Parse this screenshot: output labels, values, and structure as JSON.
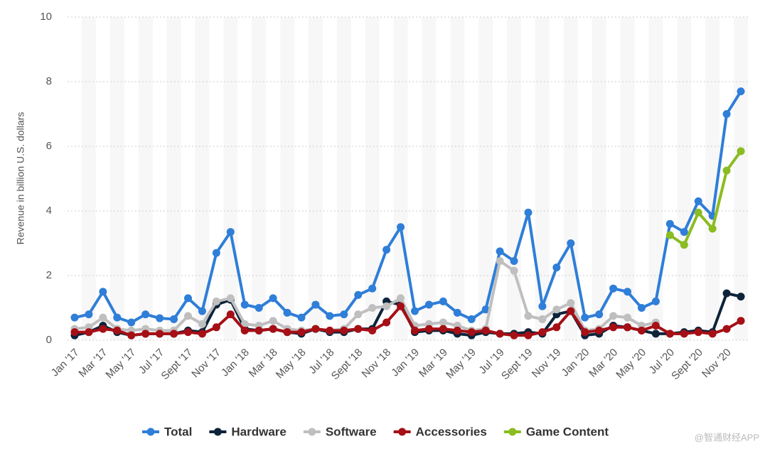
{
  "chart_data": {
    "type": "line",
    "y_label": "Revenue in billion U.S. dollars",
    "categories": [
      "Jan '17",
      null,
      "Mar '17",
      null,
      "May '17",
      null,
      "Jul '17",
      null,
      "Sept '17",
      null,
      "Nov '17",
      null,
      "Jan '18",
      null,
      "Mar '18",
      null,
      "May '18",
      null,
      "Jul '18",
      null,
      "Sept '18",
      null,
      "Nov '18",
      null,
      "Jan '19",
      null,
      "Mar '19",
      null,
      "May '19",
      null,
      "Jul '19",
      null,
      "Sept '19",
      null,
      "Nov '19",
      null,
      "Jan '20",
      null,
      "Mar '20",
      null,
      "May '20",
      null,
      "Jul '20",
      null,
      "Sept '20",
      null,
      "Nov '20",
      null
    ],
    "series": [
      {
        "name": "Total",
        "color": "#2f7ed8",
        "values": [
          0.7,
          0.8,
          1.5,
          0.7,
          0.55,
          0.8,
          0.68,
          0.65,
          1.3,
          0.9,
          2.7,
          3.35,
          1.1,
          1.0,
          1.3,
          0.85,
          0.7,
          1.1,
          0.75,
          0.8,
          1.4,
          1.6,
          2.8,
          3.5,
          0.9,
          1.1,
          1.2,
          0.85,
          0.65,
          0.95,
          2.75,
          2.45,
          3.95,
          1.05,
          2.25,
          3.0,
          0.7,
          0.8,
          1.6,
          1.5,
          1.0,
          1.2,
          3.6,
          3.35,
          4.3,
          3.85,
          7.0,
          7.7
        ]
      },
      {
        "name": "Hardware",
        "color": "#0d233a",
        "values": [
          0.15,
          0.25,
          0.45,
          0.25,
          0.15,
          0.2,
          0.2,
          0.2,
          0.3,
          0.25,
          1.1,
          1.25,
          0.35,
          0.3,
          0.35,
          0.25,
          0.2,
          0.35,
          0.25,
          0.25,
          0.35,
          0.35,
          1.2,
          1.1,
          0.25,
          0.3,
          0.3,
          0.2,
          0.15,
          0.25,
          0.2,
          0.2,
          0.25,
          0.2,
          0.8,
          0.9,
          0.15,
          0.2,
          0.45,
          0.4,
          0.3,
          0.2,
          0.2,
          0.25,
          0.3,
          0.25,
          1.45,
          1.35
        ]
      },
      {
        "name": "Software",
        "color": "#bfbfbf",
        "values": [
          0.35,
          0.4,
          0.7,
          0.35,
          0.3,
          0.35,
          0.3,
          0.3,
          0.75,
          0.5,
          1.2,
          1.3,
          0.5,
          0.45,
          0.6,
          0.35,
          0.3,
          0.35,
          0.3,
          0.35,
          0.8,
          1.0,
          1.05,
          1.3,
          0.45,
          0.5,
          0.55,
          0.45,
          0.3,
          0.35,
          2.45,
          2.15,
          0.75,
          0.65,
          0.95,
          1.15,
          0.3,
          0.35,
          0.75,
          0.7,
          0.45,
          0.55,
          null,
          null,
          null,
          null,
          null,
          null
        ]
      },
      {
        "name": "Accessories",
        "color": "#a50f15",
        "values": [
          0.25,
          0.25,
          0.35,
          0.3,
          0.15,
          0.2,
          0.2,
          0.2,
          0.25,
          0.2,
          0.4,
          0.8,
          0.3,
          0.3,
          0.35,
          0.25,
          0.25,
          0.35,
          0.3,
          0.3,
          0.35,
          0.3,
          0.55,
          1.05,
          0.3,
          0.35,
          0.35,
          0.3,
          0.25,
          0.3,
          0.2,
          0.15,
          0.15,
          0.25,
          0.4,
          0.9,
          0.25,
          0.3,
          0.4,
          0.4,
          0.3,
          0.45,
          0.2,
          0.2,
          0.25,
          0.2,
          0.35,
          0.6
        ]
      },
      {
        "name": "Game Content",
        "color": "#8bbc21",
        "values": [
          null,
          null,
          null,
          null,
          null,
          null,
          null,
          null,
          null,
          null,
          null,
          null,
          null,
          null,
          null,
          null,
          null,
          null,
          null,
          null,
          null,
          null,
          null,
          null,
          null,
          null,
          null,
          null,
          null,
          null,
          null,
          null,
          null,
          null,
          null,
          null,
          null,
          null,
          null,
          null,
          null,
          null,
          3.25,
          2.95,
          3.95,
          3.45,
          5.25,
          5.85
        ]
      }
    ],
    "ylim": [
      0,
      10
    ],
    "yticks": [
      0,
      2,
      4,
      6,
      8,
      10
    ],
    "grid": true,
    "legend": "bottom",
    "watermark": "@智通财经APP"
  }
}
